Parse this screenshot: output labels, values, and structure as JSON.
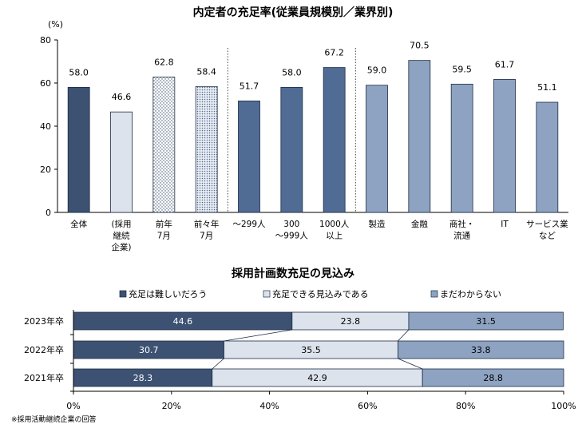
{
  "chart_data": [
    {
      "type": "bar",
      "title": "内定者の充足率(従業員規模別／業界別)",
      "ylabel": "(%)",
      "ylim": [
        0,
        80
      ],
      "yticks": [
        "0",
        "20",
        "40",
        "60",
        "80"
      ],
      "categories": [
        [
          "全体"
        ],
        [
          "(採用",
          "継続",
          "企業)"
        ],
        [
          "前年",
          "7月"
        ],
        [
          "前々年",
          "7月"
        ],
        [
          "～299人"
        ],
        [
          "300",
          "～999人"
        ],
        [
          "1000人",
          "以上"
        ],
        [
          "製造"
        ],
        [
          "金融"
        ],
        [
          "商社・",
          "流通"
        ],
        [
          "IT"
        ],
        [
          "サービス業",
          "など"
        ]
      ],
      "values": [
        58.0,
        46.6,
        62.8,
        58.4,
        51.7,
        58.0,
        67.2,
        59.0,
        70.5,
        59.5,
        61.7,
        51.1
      ],
      "labels": [
        "58.0",
        "46.6",
        "62.8",
        "58.4",
        "51.7",
        "58.0",
        "67.2",
        "59.0",
        "70.5",
        "59.5",
        "61.7",
        "51.1"
      ],
      "styles": [
        "dark",
        "light",
        "dotted-sparse",
        "dotted-dense",
        "mid",
        "mid",
        "mid",
        "light-blue",
        "light-blue",
        "light-blue",
        "light-blue",
        "light-blue"
      ],
      "separators_after": [
        3,
        6
      ],
      "grid": false,
      "colors": {
        "dark": "#3d5272",
        "light": "#dde3ec",
        "mid": "#506b94",
        "light_blue": "#8ea3c2",
        "edge": "#1c2c44"
      }
    },
    {
      "type": "bar",
      "orientation": "horizontal-stacked-100",
      "title": "採用計画数充足の見込み",
      "categories": [
        "2023年卒",
        "2022年卒",
        "2021年卒"
      ],
      "series": [
        {
          "name": "充足は難しいだろう",
          "values": [
            44.6,
            30.7,
            28.3
          ],
          "labels": [
            "44.6",
            "30.7",
            "28.3"
          ],
          "color": "#3d5272"
        },
        {
          "name": "充足できる見込みである",
          "values": [
            23.8,
            35.5,
            42.9
          ],
          "labels": [
            "23.8",
            "35.5",
            "42.9"
          ],
          "color": "#dde3ec"
        },
        {
          "name": "まだわからない",
          "values": [
            31.5,
            33.8,
            28.8
          ],
          "labels": [
            "31.5",
            "33.8",
            "28.8"
          ],
          "color": "#8ea3c2"
        }
      ],
      "xlim": [
        0,
        100
      ],
      "xticks": [
        "0%",
        "20%",
        "40%",
        "60%",
        "80%",
        "100%"
      ],
      "legend": "top",
      "grid": false
    }
  ],
  "footnote": "※採用活動継続企業の回答"
}
